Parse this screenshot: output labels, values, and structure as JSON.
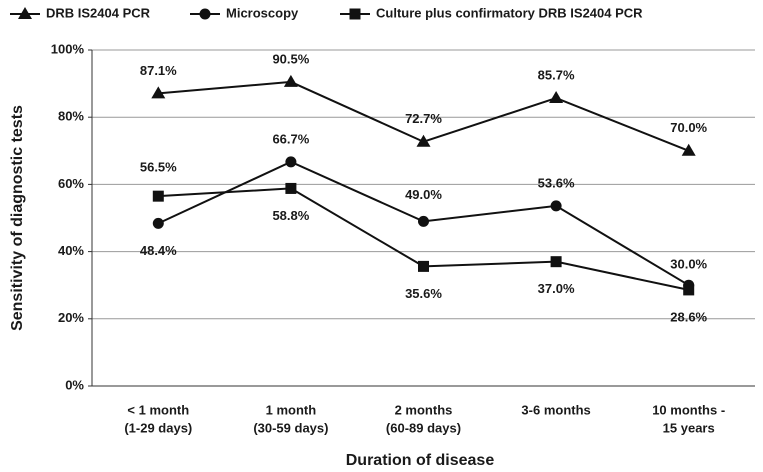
{
  "chart_data": {
    "type": "line",
    "categories": [
      [
        "< 1 month",
        "(1-29 days)"
      ],
      [
        "1 month",
        "(30-59 days)"
      ],
      [
        "2 months",
        "(60-89 days)"
      ],
      [
        "3-6 months"
      ],
      [
        "10 months -",
        "15 years"
      ]
    ],
    "series": [
      {
        "name": "DRB IS2404 PCR",
        "color": "#111111",
        "marker": "triangle",
        "values": [
          87.1,
          90.5,
          72.7,
          85.7,
          70.0
        ],
        "value_labels": [
          "87.1%",
          "90.5%",
          "72.7%",
          "85.7%",
          "70.0%"
        ]
      },
      {
        "name": "Microscopy",
        "color": "#111111",
        "marker": "circle",
        "values": [
          48.4,
          66.7,
          49.0,
          53.6,
          30.0
        ],
        "value_labels": [
          "48.4%",
          "66.7%",
          "49.0%",
          "53.6%",
          "30.0%"
        ]
      },
      {
        "name": "Culture plus confirmatory DRB IS2404 PCR",
        "color": "#111111",
        "marker": "square",
        "values": [
          56.5,
          58.8,
          35.6,
          37.0,
          28.6
        ],
        "value_labels": [
          "56.5%",
          "58.8%",
          "35.6%",
          "37.0%",
          "28.6%"
        ]
      }
    ],
    "ylim": [
      0,
      100
    ],
    "yticks": [
      {
        "value": 0,
        "label": "0%"
      },
      {
        "value": 20,
        "label": "20%"
      },
      {
        "value": 40,
        "label": "40%"
      },
      {
        "value": 60,
        "label": "60%"
      },
      {
        "value": 80,
        "label": "80%"
      },
      {
        "value": 100,
        "label": "100%"
      }
    ],
    "grid": true,
    "legend": "top",
    "y_label": "Sensitivity of diagnostic tests",
    "x_label": "Duration of disease"
  }
}
